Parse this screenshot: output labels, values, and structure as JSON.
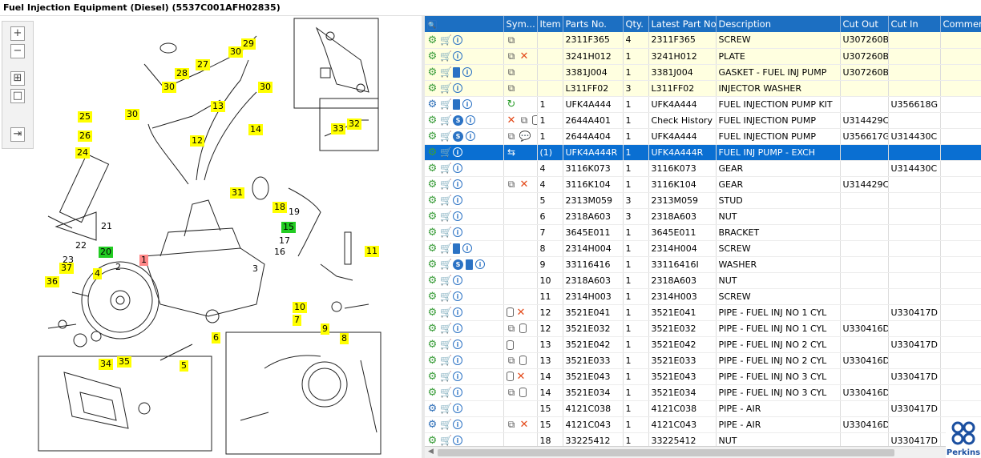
{
  "title": "Fuel Injection Equipment (Diesel) (5537C001AFH02835)",
  "brand": "Perkins",
  "toolbar": {
    "zoom_in": "+",
    "zoom_out": "−",
    "fit": "⊞",
    "actual": "□",
    "export": "⇥"
  },
  "callouts": [
    {
      "label": "29",
      "color": "yellow"
    },
    {
      "label": "30",
      "color": "yellow"
    },
    {
      "label": "27",
      "color": "yellow"
    },
    {
      "label": "28",
      "color": "yellow"
    },
    {
      "label": "30",
      "color": "yellow"
    },
    {
      "label": "30",
      "color": "yellow"
    },
    {
      "label": "13",
      "color": "yellow"
    },
    {
      "label": "30",
      "color": "yellow"
    },
    {
      "label": "25",
      "color": "yellow"
    },
    {
      "label": "14",
      "color": "yellow"
    },
    {
      "label": "26",
      "color": "yellow"
    },
    {
      "label": "12",
      "color": "yellow"
    },
    {
      "label": "24",
      "color": "yellow"
    },
    {
      "label": "33",
      "color": "yellow"
    },
    {
      "label": "32",
      "color": "yellow"
    },
    {
      "label": "31",
      "color": "yellow"
    },
    {
      "label": "18",
      "color": "yellow"
    },
    {
      "label": "19",
      "color": "none"
    },
    {
      "label": "21",
      "color": "none"
    },
    {
      "label": "15",
      "color": "green"
    },
    {
      "label": "22",
      "color": "none"
    },
    {
      "label": "17",
      "color": "none"
    },
    {
      "label": "16",
      "color": "none"
    },
    {
      "label": "11",
      "color": "yellow"
    },
    {
      "label": "20",
      "color": "green"
    },
    {
      "label": "1",
      "color": "red"
    },
    {
      "label": "23",
      "color": "none"
    },
    {
      "label": "37",
      "color": "yellow"
    },
    {
      "label": "4",
      "color": "yellow"
    },
    {
      "label": "2",
      "color": "none"
    },
    {
      "label": "3",
      "color": "none"
    },
    {
      "label": "36",
      "color": "yellow"
    },
    {
      "label": "10",
      "color": "yellow"
    },
    {
      "label": "7",
      "color": "yellow"
    },
    {
      "label": "6",
      "color": "yellow"
    },
    {
      "label": "9",
      "color": "yellow"
    },
    {
      "label": "8",
      "color": "yellow"
    },
    {
      "label": "34",
      "color": "yellow"
    },
    {
      "label": "35",
      "color": "yellow"
    },
    {
      "label": "5",
      "color": "yellow"
    }
  ],
  "columns": {
    "symbols": "Sym...",
    "item": "Item",
    "parts_no": "Parts No.",
    "qty": "Qty.",
    "latest": "Latest Part No.",
    "desc": "Description",
    "cut_out": "Cut Out",
    "cut_in": "Cut In",
    "comment": "Comment"
  },
  "rows": [
    {
      "icons": [
        "gear",
        "cart",
        "info"
      ],
      "sym": [
        "book"
      ],
      "item": "",
      "parts_no": "2311F365",
      "qty": "4",
      "latest": "2311F365",
      "desc": "SCREW",
      "cut_out": "U307260B",
      "cut_in": "",
      "style": "hl"
    },
    {
      "icons": [
        "gear",
        "cart",
        "info"
      ],
      "sym": [
        "book",
        "x"
      ],
      "item": "",
      "parts_no": "3241H012",
      "qty": "1",
      "latest": "3241H012",
      "desc": "PLATE",
      "cut_out": "U307260B",
      "cut_in": "",
      "style": "hl"
    },
    {
      "icons": [
        "gear",
        "cart",
        "doc",
        "info"
      ],
      "sym": [
        "book"
      ],
      "item": "",
      "parts_no": "3381J004",
      "qty": "1",
      "latest": "3381J004",
      "desc": "GASKET - FUEL INJ PUMP",
      "cut_out": "U307260B",
      "cut_in": "",
      "style": "hl"
    },
    {
      "icons": [
        "gear",
        "cart",
        "info"
      ],
      "sym": [
        "book"
      ],
      "item": "",
      "parts_no": "L311FF02",
      "qty": "3",
      "latest": "L311FF02",
      "desc": "INJECTOR WASHER",
      "cut_out": "",
      "cut_in": "",
      "style": "hl"
    },
    {
      "icons": [
        "gear2",
        "cart",
        "doc",
        "info"
      ],
      "sym": [
        "green"
      ],
      "item": "1",
      "parts_no": "UFK4A444",
      "qty": "1",
      "latest": "UFK4A444",
      "desc": "FUEL INJECTION PUMP KIT",
      "cut_out": "",
      "cut_in": "U356618G",
      "style": ""
    },
    {
      "icons": [
        "gear",
        "cart",
        "s",
        "info"
      ],
      "sym": [
        "x",
        "book",
        "cyl"
      ],
      "item": "1",
      "parts_no": "2644A401",
      "qty": "1",
      "latest": "Check History",
      "desc": "FUEL INJECTION PUMP",
      "cut_out": "U314429C",
      "cut_in": "",
      "style": ""
    },
    {
      "icons": [
        "gear",
        "cart",
        "s",
        "info"
      ],
      "sym": [
        "book",
        "speech"
      ],
      "item": "1",
      "parts_no": "2644A404",
      "qty": "1",
      "latest": "UFK4A444",
      "desc": "FUEL INJECTION PUMP",
      "cut_out": "U356617G",
      "cut_in": "U314430C",
      "style": ""
    },
    {
      "icons": [
        "gear",
        "cart",
        "info"
      ],
      "sym": [
        "exch"
      ],
      "item": "(1)",
      "parts_no": "UFK4A444R",
      "qty": "1",
      "latest": "UFK4A444R",
      "desc": "FUEL INJ PUMP - EXCH",
      "cut_out": "",
      "cut_in": "",
      "style": "sel"
    },
    {
      "icons": [
        "gear",
        "cart",
        "info"
      ],
      "sym": [],
      "item": "4",
      "parts_no": "3116K073",
      "qty": "1",
      "latest": "3116K073",
      "desc": "GEAR",
      "cut_out": "",
      "cut_in": "U314430C",
      "style": ""
    },
    {
      "icons": [
        "gear",
        "cart",
        "info"
      ],
      "sym": [
        "book",
        "x"
      ],
      "item": "4",
      "parts_no": "3116K104",
      "qty": "1",
      "latest": "3116K104",
      "desc": "GEAR",
      "cut_out": "U314429C",
      "cut_in": "",
      "style": ""
    },
    {
      "icons": [
        "gear",
        "cart",
        "info"
      ],
      "sym": [],
      "item": "5",
      "parts_no": "2313M059",
      "qty": "3",
      "latest": "2313M059",
      "desc": "STUD",
      "cut_out": "",
      "cut_in": "",
      "style": ""
    },
    {
      "icons": [
        "gear",
        "cart",
        "info"
      ],
      "sym": [],
      "item": "6",
      "parts_no": "2318A603",
      "qty": "3",
      "latest": "2318A603",
      "desc": "NUT",
      "cut_out": "",
      "cut_in": "",
      "style": ""
    },
    {
      "icons": [
        "gear",
        "cart",
        "info"
      ],
      "sym": [],
      "item": "7",
      "parts_no": "3645E011",
      "qty": "1",
      "latest": "3645E011",
      "desc": "BRACKET",
      "cut_out": "",
      "cut_in": "",
      "style": ""
    },
    {
      "icons": [
        "gear",
        "cart",
        "doc",
        "info"
      ],
      "sym": [],
      "item": "8",
      "parts_no": "2314H004",
      "qty": "1",
      "latest": "2314H004",
      "desc": "SCREW",
      "cut_out": "",
      "cut_in": "",
      "style": ""
    },
    {
      "icons": [
        "gear",
        "cart",
        "s",
        "doc",
        "info"
      ],
      "sym": [],
      "item": "9",
      "parts_no": "33116416",
      "qty": "1",
      "latest": "33116416I",
      "desc": "WASHER",
      "cut_out": "",
      "cut_in": "",
      "style": ""
    },
    {
      "icons": [
        "gear",
        "cart",
        "info"
      ],
      "sym": [],
      "item": "10",
      "parts_no": "2318A603",
      "qty": "1",
      "latest": "2318A603",
      "desc": "NUT",
      "cut_out": "",
      "cut_in": "",
      "style": ""
    },
    {
      "icons": [
        "gear",
        "cart",
        "info"
      ],
      "sym": [],
      "item": "11",
      "parts_no": "2314H003",
      "qty": "1",
      "latest": "2314H003",
      "desc": "SCREW",
      "cut_out": "",
      "cut_in": "",
      "style": ""
    },
    {
      "icons": [
        "gear",
        "cart",
        "info"
      ],
      "sym": [
        "cyl",
        "x"
      ],
      "item": "12",
      "parts_no": "3521E041",
      "qty": "1",
      "latest": "3521E041",
      "desc": "PIPE - FUEL INJ NO 1 CYL",
      "cut_out": "",
      "cut_in": "U330417D",
      "style": ""
    },
    {
      "icons": [
        "gear",
        "cart",
        "info"
      ],
      "sym": [
        "book",
        "cyl"
      ],
      "item": "12",
      "parts_no": "3521E032",
      "qty": "1",
      "latest": "3521E032",
      "desc": "PIPE - FUEL INJ NO 1 CYL",
      "cut_out": "U330416D",
      "cut_in": "",
      "style": ""
    },
    {
      "icons": [
        "gear",
        "cart",
        "info"
      ],
      "sym": [
        "cyl"
      ],
      "item": "13",
      "parts_no": "3521E042",
      "qty": "1",
      "latest": "3521E042",
      "desc": "PIPE - FUEL INJ NO 2 CYL",
      "cut_out": "",
      "cut_in": "U330417D",
      "style": ""
    },
    {
      "icons": [
        "gear",
        "cart",
        "info"
      ],
      "sym": [
        "book",
        "cyl"
      ],
      "item": "13",
      "parts_no": "3521E033",
      "qty": "1",
      "latest": "3521E033",
      "desc": "PIPE - FUEL INJ NO 2 CYL",
      "cut_out": "U330416D",
      "cut_in": "",
      "style": ""
    },
    {
      "icons": [
        "gear",
        "cart",
        "info"
      ],
      "sym": [
        "cyl",
        "x"
      ],
      "item": "14",
      "parts_no": "3521E043",
      "qty": "1",
      "latest": "3521E043",
      "desc": "PIPE - FUEL INJ NO 3 CYL",
      "cut_out": "",
      "cut_in": "U330417D",
      "style": ""
    },
    {
      "icons": [
        "gear",
        "cart",
        "info"
      ],
      "sym": [
        "book",
        "cyl"
      ],
      "item": "14",
      "parts_no": "3521E034",
      "qty": "1",
      "latest": "3521E034",
      "desc": "PIPE - FUEL INJ NO 3 CYL",
      "cut_out": "U330416D",
      "cut_in": "",
      "style": ""
    },
    {
      "icons": [
        "gear2",
        "cart",
        "info"
      ],
      "sym": [],
      "item": "15",
      "parts_no": "4121C038",
      "qty": "1",
      "latest": "4121C038",
      "desc": "PIPE - AIR",
      "cut_out": "",
      "cut_in": "U330417D",
      "style": ""
    },
    {
      "icons": [
        "gear2",
        "cart",
        "info"
      ],
      "sym": [
        "book",
        "x"
      ],
      "item": "15",
      "parts_no": "4121C043",
      "qty": "1",
      "latest": "4121C043",
      "desc": "PIPE - AIR",
      "cut_out": "U330416D",
      "cut_in": "",
      "style": ""
    },
    {
      "icons": [
        "gear",
        "cart",
        "info"
      ],
      "sym": [],
      "item": "18",
      "parts_no": "33225412",
      "qty": "1",
      "latest": "33225412",
      "desc": "NUT",
      "cut_out": "",
      "cut_in": "U330417D",
      "style": ""
    }
  ]
}
